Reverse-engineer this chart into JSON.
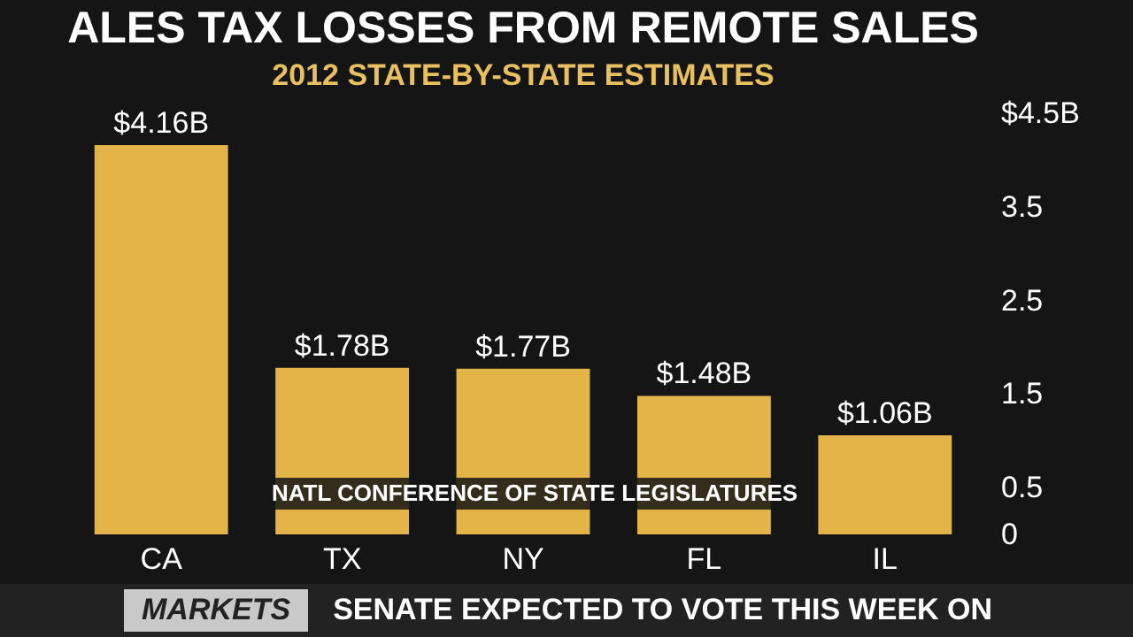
{
  "chart_data": {
    "type": "bar",
    "title": "ALES TAX LOSSES FROM REMOTE SALES",
    "subtitle": "2012 STATE-BY-STATE ESTIMATES",
    "categories": [
      "CA",
      "TX",
      "NY",
      "FL",
      "IL"
    ],
    "values": [
      4.16,
      1.78,
      1.77,
      1.48,
      1.06
    ],
    "value_labels": [
      "$4.16B",
      "$1.78B",
      "$1.77B",
      "$1.48B",
      "$1.06B"
    ],
    "color": "#e3b448",
    "ylim": [
      0,
      4.5
    ],
    "yticks": [
      0,
      0.5,
      1.5,
      2.5,
      3.5,
      {
        "value": 4.5,
        "label": "$4.5B"
      }
    ],
    "grid": false,
    "annotations": [
      "NATL CONFERENCE OF STATE LEGISLATURES",
      "MARKETS",
      "SENATE EXPECTED TO VOTE THIS WEEK ON"
    ]
  }
}
